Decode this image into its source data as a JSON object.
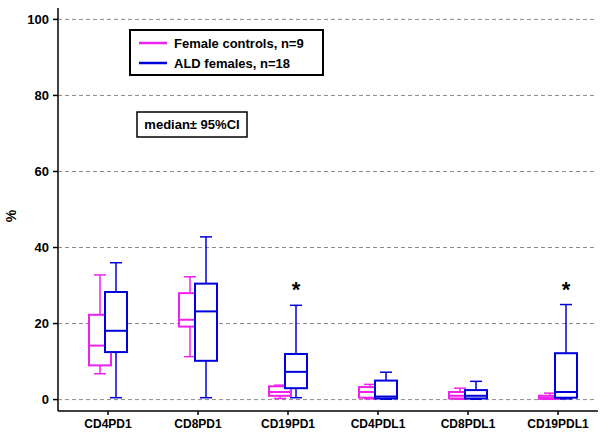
{
  "chart_data": {
    "type": "box",
    "y_label": "%",
    "categories": [
      "CD4PD1",
      "CD8PD1",
      "CD19PD1",
      "CD4PDL1",
      "CD8PDL1",
      "CD19PDL1"
    ],
    "series": [
      {
        "name": "Female controls, n=9",
        "color": "#ee22ee",
        "min": [
          6.8,
          11.3,
          0.3,
          0.2,
          0.1,
          0.1
        ],
        "q1": [
          9,
          19.2,
          1,
          0.5,
          0.3,
          0.2
        ],
        "median": [
          14.2,
          21,
          2,
          2,
          1,
          0.5
        ],
        "q3": [
          22.3,
          28,
          3.5,
          3.3,
          2,
          1
        ],
        "max": [
          32.8,
          32.3,
          3.8,
          4,
          3,
          1.7
        ]
      },
      {
        "name": "ALD females, n=18",
        "color": "#0000dd",
        "min": [
          0.5,
          0.5,
          0.5,
          0.1,
          0.1,
          0.2
        ],
        "q1": [
          12.5,
          10.2,
          3,
          0.3,
          0.3,
          0.5
        ],
        "median": [
          18.1,
          23.2,
          7.3,
          0.8,
          1,
          2
        ],
        "q3": [
          28.3,
          30.5,
          12,
          5,
          2.5,
          12.2
        ],
        "max": [
          36,
          42.8,
          24.8,
          7.2,
          4.8,
          25
        ]
      }
    ],
    "ylim": [
      -3,
      103
    ],
    "yticks": [
      0,
      20,
      40,
      60,
      80,
      100
    ],
    "grid": true,
    "legend": "upper left",
    "annotations": [
      {
        "text": "median± 95%CI"
      },
      {
        "text": "*",
        "category": "CD19PD1"
      },
      {
        "text": "*",
        "category": "CD19PDL1"
      }
    ]
  }
}
